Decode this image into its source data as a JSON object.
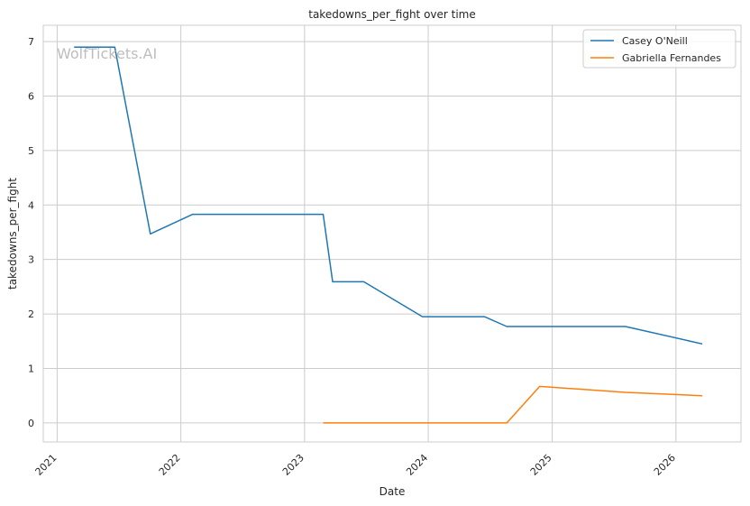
{
  "watermark": "WolfTickets.AI",
  "chart_data": {
    "type": "line",
    "title": "takedowns_per_fight over time",
    "xlabel": "Date",
    "ylabel": "takedowns_per_fight",
    "xlim": [
      "2020-11-21",
      "2026-07-12"
    ],
    "ylim": [
      -0.35,
      7.3
    ],
    "x_ticks": [
      "2021",
      "2022",
      "2023",
      "2024",
      "2025",
      "2026"
    ],
    "y_ticks": [
      0,
      1,
      2,
      3,
      4,
      5,
      6,
      7
    ],
    "grid": true,
    "legend_position": "top-right",
    "series": [
      {
        "name": "Casey O'Neill",
        "color": "#1f77b4",
        "points": [
          {
            "x": "2021-02-20",
            "y": 6.9
          },
          {
            "x": "2021-06-20",
            "y": 6.9
          },
          {
            "x": "2021-10-03",
            "y": 3.47
          },
          {
            "x": "2022-02-05",
            "y": 3.83
          },
          {
            "x": "2023-02-25",
            "y": 3.83
          },
          {
            "x": "2023-03-25",
            "y": 2.59
          },
          {
            "x": "2023-06-25",
            "y": 2.59
          },
          {
            "x": "2023-12-15",
            "y": 1.95
          },
          {
            "x": "2024-06-15",
            "y": 1.95
          },
          {
            "x": "2024-08-20",
            "y": 1.77
          },
          {
            "x": "2025-08-05",
            "y": 1.77
          },
          {
            "x": "2026-03-20",
            "y": 1.45
          }
        ]
      },
      {
        "name": "Gabriella Fernandes",
        "color": "#ff7f0e",
        "points": [
          {
            "x": "2023-02-25",
            "y": 0.0
          },
          {
            "x": "2024-08-20",
            "y": 0.0
          },
          {
            "x": "2024-11-25",
            "y": 0.67
          },
          {
            "x": "2025-08-05",
            "y": 0.56
          },
          {
            "x": "2026-03-20",
            "y": 0.5
          }
        ]
      }
    ]
  }
}
